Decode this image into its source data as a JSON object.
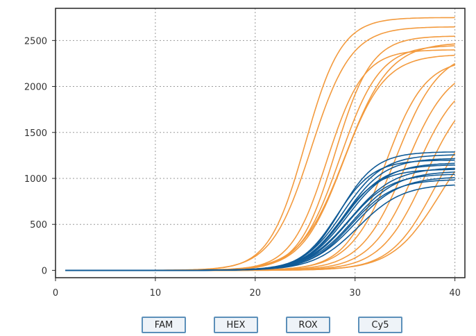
{
  "chart_data": {
    "type": "line",
    "title": "",
    "xlabel": "",
    "ylabel": "",
    "xlim": [
      0,
      41
    ],
    "ylim": [
      -80,
      2850
    ],
    "x_ticks": [
      0,
      10,
      20,
      30,
      40
    ],
    "y_ticks": [
      0,
      500,
      1000,
      1500,
      2000,
      2500
    ],
    "x_tick_labels": [
      "0",
      "10",
      "20",
      "30",
      "40"
    ],
    "y_tick_labels": [
      "0",
      "500",
      "1000",
      "1500",
      "2000",
      "2500"
    ],
    "grid": true,
    "colors": {
      "orange": "#f39a3d",
      "blue": "#0f5a96"
    },
    "x_range": [
      1,
      40
    ],
    "series_groups": [
      {
        "color": "orange",
        "curves": [
          {
            "max": 2750,
            "ct": 25.0,
            "k": 0.55
          },
          {
            "max": 2650,
            "ct": 25.6,
            "k": 0.5
          },
          {
            "max": 2550,
            "ct": 28.0,
            "k": 0.55
          },
          {
            "max": 2450,
            "ct": 28.5,
            "k": 0.5
          },
          {
            "max": 2480,
            "ct": 29.0,
            "k": 0.45
          },
          {
            "max": 2400,
            "ct": 27.2,
            "k": 0.55
          },
          {
            "max": 2350,
            "ct": 28.8,
            "k": 0.48
          },
          {
            "max": 2300,
            "ct": 33.0,
            "k": 0.5
          },
          {
            "max": 2400,
            "ct": 34.0,
            "k": 0.45
          },
          {
            "max": 2250,
            "ct": 35.0,
            "k": 0.45
          },
          {
            "max": 2150,
            "ct": 36.0,
            "k": 0.45
          },
          {
            "max": 2050,
            "ct": 37.0,
            "k": 0.45
          },
          {
            "max": 1800,
            "ct": 38.0,
            "k": 0.45
          },
          {
            "max": 1650,
            "ct": 38.5,
            "k": 0.42
          }
        ]
      },
      {
        "color": "blue",
        "curves": [
          {
            "max": 1290,
            "ct": 28.5,
            "k": 0.55
          },
          {
            "max": 1260,
            "ct": 28.8,
            "k": 0.5
          },
          {
            "max": 1220,
            "ct": 29.0,
            "k": 0.5
          },
          {
            "max": 1200,
            "ct": 28.2,
            "k": 0.55
          },
          {
            "max": 1170,
            "ct": 29.2,
            "k": 0.48
          },
          {
            "max": 1150,
            "ct": 28.9,
            "k": 0.5
          },
          {
            "max": 1120,
            "ct": 29.5,
            "k": 0.45
          },
          {
            "max": 1100,
            "ct": 28.6,
            "k": 0.52
          },
          {
            "max": 1080,
            "ct": 29.8,
            "k": 0.45
          },
          {
            "max": 1050,
            "ct": 29.3,
            "k": 0.48
          },
          {
            "max": 1020,
            "ct": 30.0,
            "k": 0.45
          },
          {
            "max": 990,
            "ct": 29.6,
            "k": 0.48
          },
          {
            "max": 940,
            "ct": 30.3,
            "k": 0.45
          }
        ]
      }
    ]
  },
  "legend": {
    "buttons": [
      {
        "label": "FAM"
      },
      {
        "label": "HEX"
      },
      {
        "label": "ROX"
      },
      {
        "label": "Cy5"
      }
    ]
  }
}
